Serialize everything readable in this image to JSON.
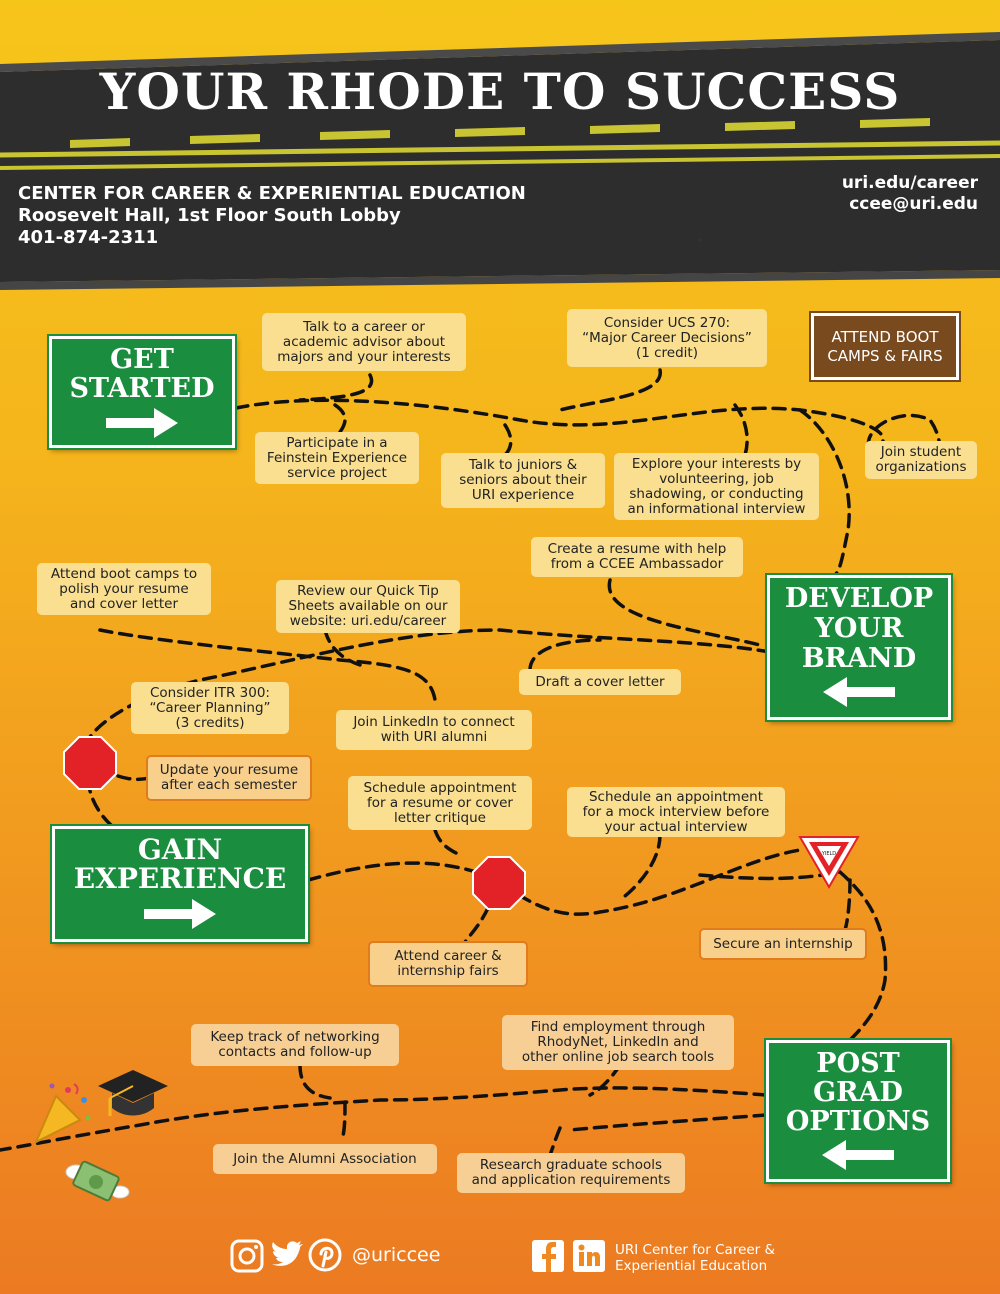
{
  "title": "YOUR RHODE TO SUCCESS",
  "header": {
    "org_name": "CENTER FOR CAREER & EXPERIENTIAL EDUCATION",
    "location": "Roosevelt Hall, 1st Floor South Lobby",
    "phone": "401-874-2311",
    "website": "uri.edu/career",
    "email": "ccee@uri.edu"
  },
  "signs": {
    "get_started": "GET\nSTARTED",
    "develop_brand": "DEVELOP\nYOUR\nBRAND",
    "gain_experience": "GAIN\nEXPERIENCE",
    "post_grad": "POST\nGRAD\nOPTIONS",
    "boot_camps": "ATTEND BOOT\nCAMPS & FAIRS",
    "yield": "YIELD"
  },
  "steps": {
    "talk_advisor": "Talk to a career or\nacademic advisor about\nmajors and your interests",
    "ucs270": "Consider UCS 270:\n“Major Career Decisions”\n(1 credit)",
    "feinstein": "Participate in a\nFeinstein Experience\nservice project",
    "juniors_seniors": "Talk to juniors &\nseniors about their\nURI experience",
    "explore_interests": "Explore your interests by\nvolunteering, job\nshadowing, or conducting\nan informational interview",
    "student_orgs": "Join student\norganizations",
    "create_resume": "Create a resume with help\nfrom a CCEE Ambassador",
    "boot_camps_polish": "Attend boot camps to\npolish your resume\nand cover letter",
    "quick_tips": "Review our Quick Tip\nSheets available on our\nwebsite: uri.edu/career",
    "cover_letter": "Draft a cover letter",
    "itr300": "Consider ITR 300:\n“Career Planning”\n(3 credits)",
    "linkedin": "Join LinkedIn to connect\nwith URI alumni",
    "update_resume": "Update your resume\nafter each semester",
    "critique": "Schedule appointment\nfor a resume or cover\nletter critique",
    "mock_interview": "Schedule an appointment\nfor a mock interview before\nyour actual interview",
    "fairs": "Attend career &\ninternship fairs",
    "internship": "Secure an internship",
    "networking": "Keep track of networking\ncontacts and follow-up",
    "employment": "Find employment through\nRhodyNet, LinkedIn and\nother online job search tools",
    "alumni": "Join the Alumni Association",
    "grad_schools": "Research graduate schools\nand application requirements"
  },
  "footer": {
    "social_handle": "@uriccee",
    "social_org": "URI Center for Career &\nExperiential Education",
    "icons": [
      "instagram-icon",
      "twitter-icon",
      "pinterest-icon",
      "facebook-icon",
      "linkedin-icon"
    ]
  },
  "colors": {
    "sign_green": "#1a8d3f",
    "road": "#2b2b2b",
    "road_line": "#c9c431",
    "stop_red": "#e32228",
    "brown_sign": "#7a4a1f"
  }
}
